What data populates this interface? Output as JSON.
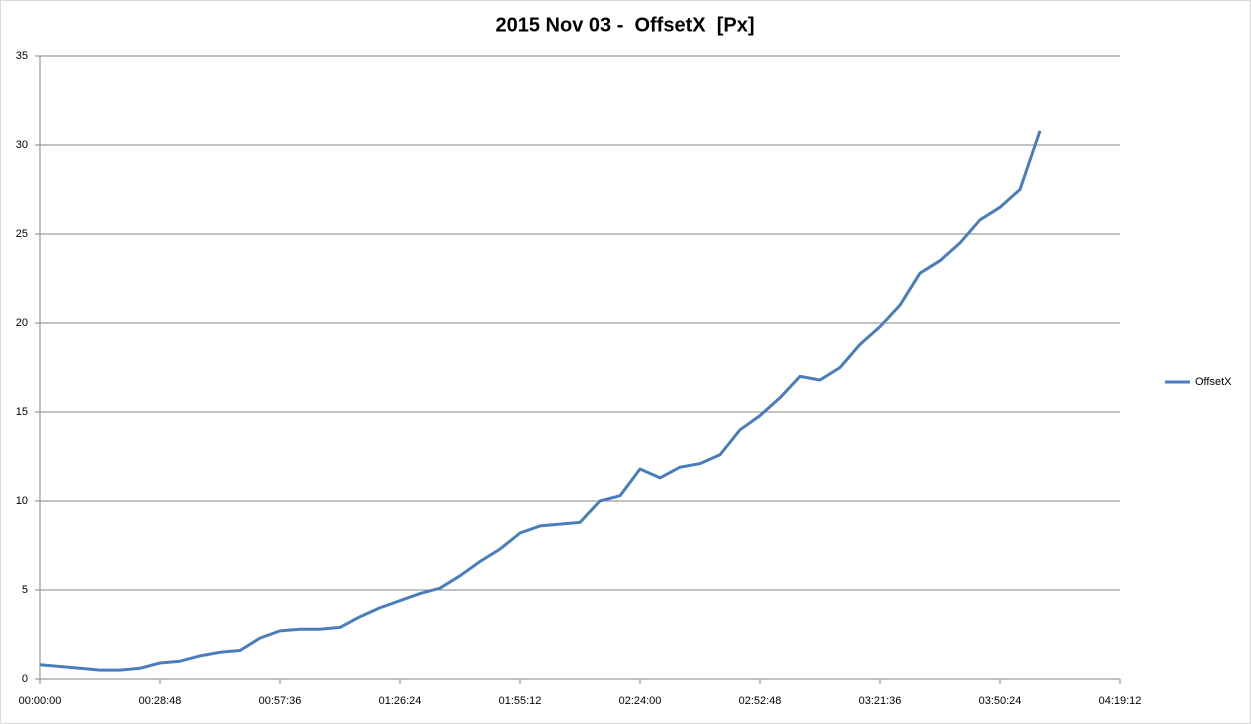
{
  "chart_data": {
    "type": "line",
    "title": "2015 Nov 03 -  OffsetX  [Px]",
    "x": [
      0,
      288,
      576,
      864,
      1152,
      1440,
      1728,
      2016,
      2304,
      2592,
      2880,
      3168,
      3456,
      3744,
      4032,
      4320,
      4608,
      4896,
      5184,
      5472,
      5760,
      6048,
      6336,
      6624,
      6912,
      7200,
      7488,
      7776,
      8064,
      8352,
      8640,
      8928,
      9216,
      9504,
      9792,
      10080,
      10368,
      10656,
      10944,
      11232,
      11520,
      11808,
      12096,
      12384,
      12672,
      12960,
      13248,
      13536,
      13824,
      14112,
      14400
    ],
    "series": [
      {
        "name": "OffsetX",
        "color": "#4a7ebb",
        "values": [
          0.8,
          0.7,
          0.6,
          0.5,
          0.5,
          0.6,
          0.9,
          1.0,
          1.3,
          1.5,
          1.6,
          2.3,
          2.7,
          2.8,
          2.8,
          2.9,
          3.5,
          4.0,
          4.4,
          4.8,
          5.1,
          5.8,
          6.6,
          7.3,
          8.2,
          8.6,
          8.7,
          8.8,
          10.0,
          10.3,
          11.8,
          11.3,
          11.9,
          12.1,
          12.6,
          14.0,
          14.8,
          15.8,
          17.0,
          16.8,
          17.5,
          18.8,
          19.8,
          21.0,
          22.8,
          23.5,
          24.5,
          25.8,
          26.5,
          27.5,
          30.8
        ]
      }
    ],
    "xlim": [
      0,
      15552
    ],
    "xticks": [
      {
        "value": 0,
        "label": "00:00:00"
      },
      {
        "value": 1728,
        "label": "00:28:48"
      },
      {
        "value": 3456,
        "label": "00:57:36"
      },
      {
        "value": 5184,
        "label": "01:26:24"
      },
      {
        "value": 6912,
        "label": "01:55:12"
      },
      {
        "value": 8640,
        "label": "02:24:00"
      },
      {
        "value": 10368,
        "label": "02:52:48"
      },
      {
        "value": 12096,
        "label": "03:21:36"
      },
      {
        "value": 13824,
        "label": "03:50:24"
      },
      {
        "value": 15552,
        "label": "04:19:12"
      }
    ],
    "ylim": [
      0,
      35
    ],
    "yticks": [
      0,
      5,
      10,
      15,
      20,
      25,
      30,
      35
    ],
    "grid": true,
    "legend": "right"
  }
}
